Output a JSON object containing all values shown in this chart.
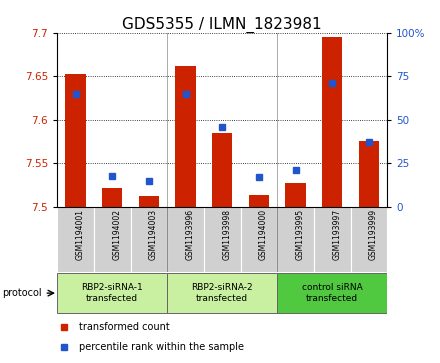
{
  "title": "GDS5355 / ILMN_1823981",
  "samples": [
    "GSM1194001",
    "GSM1194002",
    "GSM1194003",
    "GSM1193996",
    "GSM1193998",
    "GSM1194000",
    "GSM1193995",
    "GSM1193997",
    "GSM1193999"
  ],
  "red_values": [
    7.652,
    7.522,
    7.513,
    7.662,
    7.585,
    7.514,
    7.527,
    7.695,
    7.576
  ],
  "blue_values": [
    65,
    18,
    15,
    65,
    46,
    17,
    21,
    71,
    37
  ],
  "ylim_left": [
    7.5,
    7.7
  ],
  "ylim_right": [
    0,
    100
  ],
  "yticks_left": [
    7.5,
    7.55,
    7.6,
    7.65,
    7.7
  ],
  "yticks_right": [
    0,
    25,
    50,
    75,
    100
  ],
  "groups": [
    {
      "label": "RBP2-siRNA-1\ntransfected",
      "start": 0,
      "end": 3,
      "color": "#c8f0a0"
    },
    {
      "label": "RBP2-siRNA-2\ntransfected",
      "start": 3,
      "end": 6,
      "color": "#c8f0a0"
    },
    {
      "label": "control siRNA\ntransfected",
      "start": 6,
      "end": 9,
      "color": "#50c840"
    }
  ],
  "bar_width": 0.55,
  "red_color": "#cc2200",
  "blue_color": "#2255cc",
  "bg_color": "#d0d0d0",
  "plot_bg": "#ffffff",
  "grid_color": "#000000",
  "title_fontsize": 11,
  "tick_fontsize": 7.5,
  "protocol_label": "protocol",
  "legend_red": "transformed count",
  "legend_blue": "percentile rank within the sample"
}
